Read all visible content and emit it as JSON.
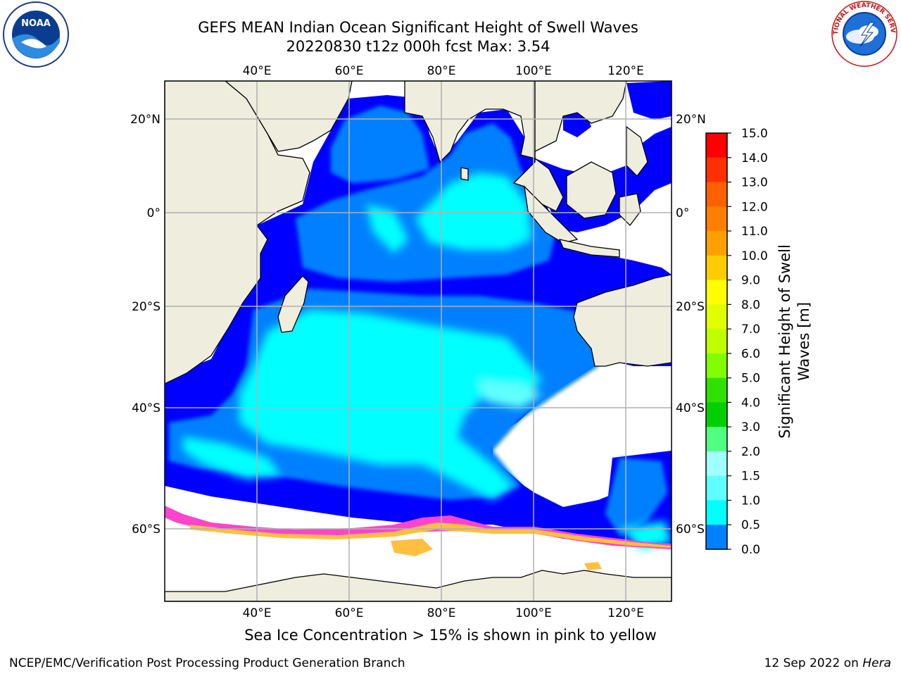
{
  "header": {
    "title": "GEFS MEAN Indian Ocean Significant Height of Swell Waves",
    "subtitle": "20220830 t12z 000h fcst   Max: 3.54"
  },
  "logos": {
    "left": {
      "icon": "noaa-logo-icon",
      "text": "NOAA"
    },
    "right": {
      "icon": "nws-logo-icon",
      "text": "NATIONAL WEATHER SERVICE"
    }
  },
  "map": {
    "lon_ticks": [
      "40°E",
      "60°E",
      "80°E",
      "100°E",
      "120°E"
    ],
    "lon_values": [
      40,
      60,
      80,
      100,
      120
    ],
    "lat_ticks": [
      "20°N",
      "0°",
      "20°S",
      "40°S",
      "60°S"
    ],
    "lat_values": [
      20,
      0,
      -20,
      -40,
      -60
    ],
    "extent": {
      "lon": [
        20,
        130
      ],
      "lat": [
        -70,
        28
      ]
    },
    "colors": {
      "land": "#efedde",
      "ocean_low": "#0000ff",
      "ocean_mid": "#0080ff",
      "ocean_high": "#00ffff",
      "ice": "#ff44cc",
      "ice_warm": "#ffc040",
      "grid": "#b0b0b0"
    }
  },
  "colorbar": {
    "label_line1": "Significant Height of Swell",
    "label_line2": "Waves [m]",
    "ticks": [
      "15.0",
      "14.0",
      "13.0",
      "12.0",
      "11.0",
      "10.0",
      "9.0",
      "8.0",
      "7.0",
      "6.0",
      "5.0",
      "4.0",
      "3.0",
      "2.0",
      "1.5",
      "1.0",
      "0.5",
      "0.0"
    ],
    "colors": [
      "#ff0000",
      "#ff3000",
      "#ff6000",
      "#ff8000",
      "#ffa000",
      "#ffcc00",
      "#ffff00",
      "#e0ff00",
      "#c0ff00",
      "#80ff00",
      "#30e000",
      "#00d000",
      "#50ff80",
      "#a0ffff",
      "#60ffff",
      "#00ffff",
      "#0080ff",
      "#0000ff"
    ]
  },
  "footer": {
    "note": "Sea Ice Concentration > 15% is shown in pink to yellow",
    "credit_left": "NCEP/EMC/Verification Post Processing Product Generation Branch",
    "credit_date": "12 Sep 2022 on",
    "credit_machine": "Hera"
  }
}
